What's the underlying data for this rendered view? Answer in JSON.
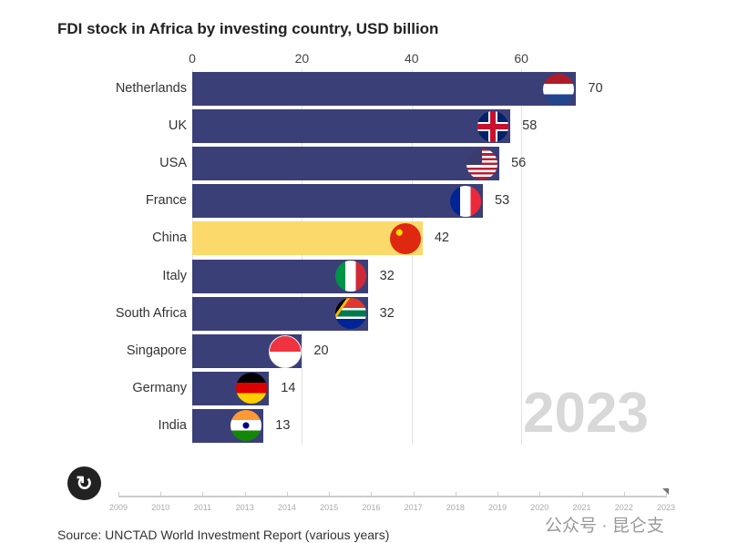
{
  "chart_data": {
    "type": "bar",
    "orientation": "horizontal",
    "title": "FDI stock in Africa by investing country, USD billion",
    "categories": [
      "Netherlands",
      "UK",
      "USA",
      "France",
      "China",
      "Italy",
      "South Africa",
      "Singapore",
      "Germany",
      "India"
    ],
    "values": [
      70,
      58,
      56,
      53,
      42,
      32,
      32,
      20,
      14,
      13
    ],
    "xticks": [
      0,
      20,
      40,
      60
    ],
    "xlim": [
      0,
      72
    ],
    "grid": true,
    "colors": {
      "default": "#3b3f78",
      "highlight": "#fbd96a"
    },
    "highlight": "China",
    "flags": [
      "netherlands-flag",
      "uk-flag",
      "usa-flag",
      "france-flag",
      "china-flag",
      "italy-flag",
      "south-africa-flag",
      "singapore-flag",
      "germany-flag",
      "india-flag"
    ]
  },
  "year_label": "2023",
  "timeline": {
    "years": [
      "2009",
      "2010",
      "2011",
      "2013",
      "2014",
      "2015",
      "2016",
      "2017",
      "2018",
      "2019",
      "2020",
      "2021",
      "2022",
      "2023"
    ],
    "current": "2023"
  },
  "replay_icon": "replay-icon",
  "source": "Source: UNCTAD World Investment Report (various years)",
  "watermark": "公众号 · 昆仑支"
}
